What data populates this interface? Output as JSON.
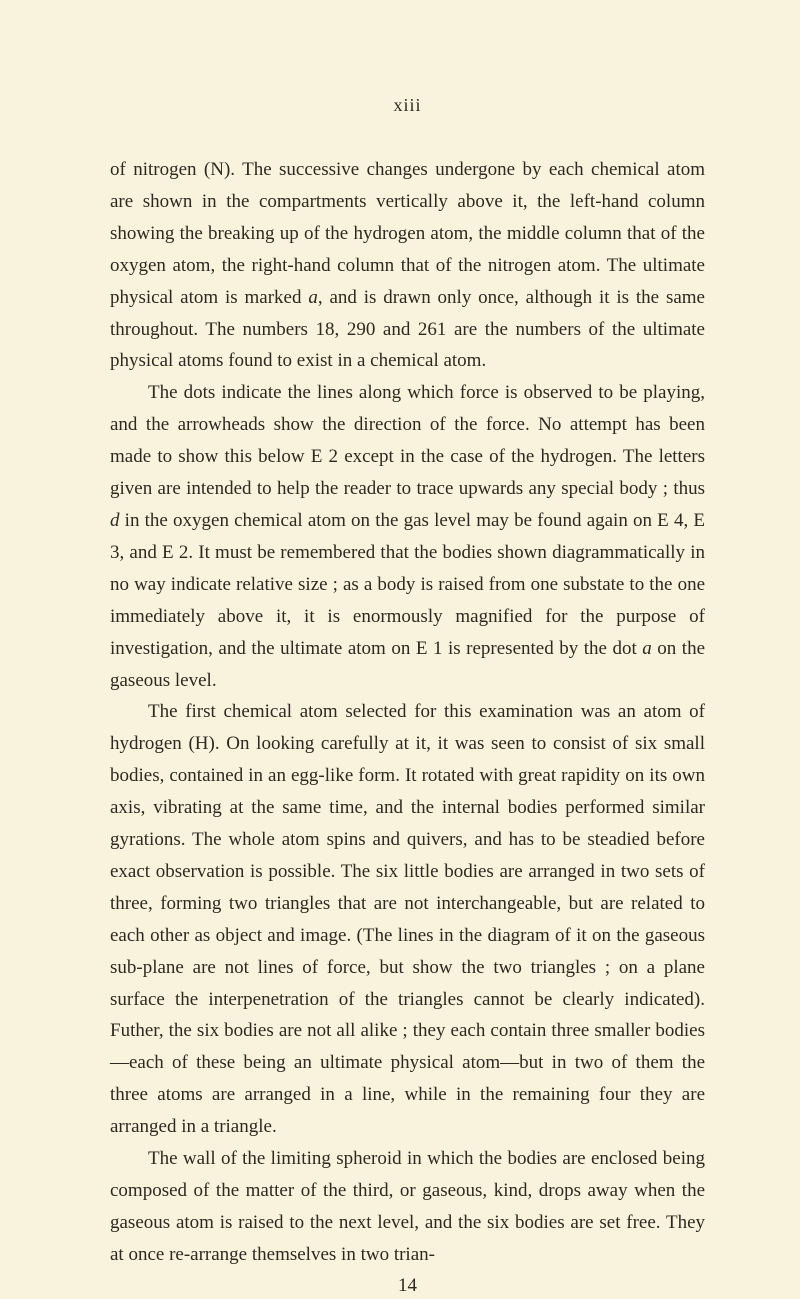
{
  "page": {
    "roman_numeral": "xiii",
    "bottom_number": "14",
    "background_color": "#f9f3de",
    "text_color": "#2d2920",
    "font_size_body": 19,
    "line_height": 1.68
  },
  "paragraphs": {
    "p1_a": "of nitrogen (N).   The successive changes undergone by each chemi­cal atom are shown in the compartments vertically above it, the left-hand column showing the breaking up of the hydrogen atom, the middle column that of the oxygen atom, the right-hand column that of the nitrogen atom.   The ultimate physical atom is marked ",
    "p1_italic1": "a",
    "p1_b": ", and is drawn only once, although it is the same throughout.   The numbers 18, 290 and 261 are the numbers of the ultimate physical atoms found to exist in a chemical atom.",
    "p2_a": "The dots indicate the lines along which force is observed to be playing, and the arrowheads show the direction of the force.   No attempt has been made to show this below E 2 except in the case of the hydrogen.   The letters given are intended to help the reader to trace upwards any special body ; thus ",
    "p2_italic1": "d",
    "p2_b": " in the oxygen chemical atom on the gas level may be found again on E 4, E 3, and E 2. It must be remembered that the bodies shown diagrammatically in no way indicate relative size ; as a body is raised from one substate to the one immediately above it, it is enormously magnified for the purpose of investigation, and the ultimate atom on E 1 is represen­ted by the dot ",
    "p2_italic2": "a",
    "p2_c": " on the gaseous level.",
    "p3": "The first chemical atom selected for this examination was an atom of hydrogen (H).   On looking carefully at it, it was seen to consist of six small bodies, contained in an egg-like form.   It rotated with great rapidity on its own axis, vibrating at the same time, and the internal bodies performed similar gyrations.   The whole atom spins and quivers, and has to be steadied before exact observation is possible.   The six little bodies are arranged in two sets of three, for­ming two triangles that are not interchangeable, but are related to each other as object and image.   (The lines in the diagram of it on the gaseous sub-plane are not lines of force, but show the two trian­gles ; on a plane surface the interpenetration of the triangles cannot be clearly indicated).   Futher, the six bodies are not all alike ; they each contain three smaller bodies—each of these being an ultimate physical atom—but in two of them the three atoms are arranged in a line, while in the remaining four they are arranged in a triangle.",
    "p4": "The wall of the limiting spheroid in which the bodies are enclos­ed being composed of the matter of the third, or gaseous, kind, drops away when the gaseous atom is raised to the next level, and the six bodies are set free.   They at once re-arrange themselves in two trian-"
  }
}
